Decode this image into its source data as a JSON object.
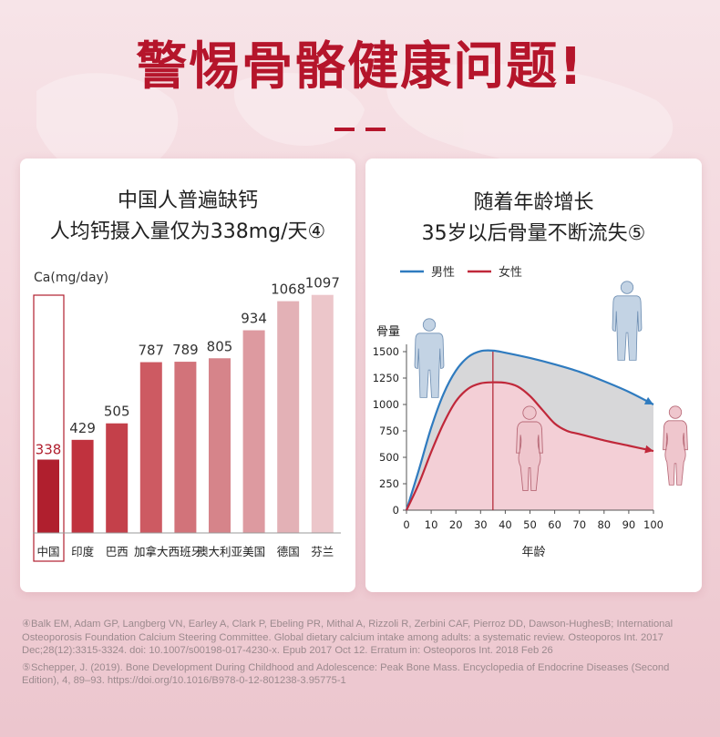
{
  "header": {
    "title": "警惕骨骼健康问题!"
  },
  "left_card": {
    "title_line1": "中国人普遍缺钙",
    "title_line2": "人均钙摄入量仅为338mg/天④"
  },
  "right_card": {
    "title_line1": "随着年龄增长",
    "title_line2": "35岁以后骨量不断流失⑤"
  },
  "references": {
    "ref4": "④Balk EM, Adam GP, Langberg VN, Earley A, Clark P, Ebeling PR, Mithal A, Rizzoli R, Zerbini CAF, Pierroz DD, Dawson-HughesB; International Osteoporosis Foundation Calcium Steering Committee. Global dietary calcium intake among adults: a systematic review. Osteoporos Int. 2017 Dec;28(12):3315-3324. doi: 10.1007/s00198-017-4230-x. Epub 2017 Oct 12. Erratum in: Osteoporos Int. 2018 Feb 26",
    "ref5": "⑤Schepper, J. (2019). Bone Development During Childhood and Adolescence: Peak Bone Mass. Encyclopedia of Endocrine Diseases (Second Edition), 4, 89–93. https://doi.org/10.1016/B978-0-12-801238-3.95775-1"
  },
  "chart_data": [
    {
      "type": "bar",
      "ylabel": "Ca(mg/day)",
      "categories": [
        "中国",
        "印度",
        "巴西",
        "加拿大",
        "西班牙",
        "澳大利亚",
        "美国",
        "德国",
        "芬兰"
      ],
      "values": [
        338,
        429,
        505,
        787,
        789,
        805,
        934,
        1068,
        1097
      ],
      "ylim": [
        0,
        1100
      ],
      "highlight_index": 0,
      "colors": [
        "#b01f2e",
        "#c0323e",
        "#c4404a",
        "#cd5a62",
        "#d2737a",
        "#d6848a",
        "#dd9aa0",
        "#e3b1b6",
        "#ecc6ca"
      ],
      "highlight_color": "#b01f2e"
    },
    {
      "type": "line",
      "ylabel": "骨量",
      "xlabel": "年龄",
      "xticks": [
        0,
        10,
        20,
        30,
        40,
        50,
        60,
        70,
        80,
        90,
        100
      ],
      "yticks": [
        0,
        250,
        500,
        750,
        1000,
        1250,
        1500
      ],
      "xlim": [
        0,
        100
      ],
      "ylim": [
        0,
        1500
      ],
      "peak_age": 35,
      "series": [
        {
          "name": "男性",
          "color": "#2f7bbf",
          "x": [
            0,
            5,
            10,
            15,
            20,
            25,
            30,
            35,
            40,
            50,
            60,
            70,
            80,
            90,
            100
          ],
          "y": [
            0,
            380,
            780,
            1100,
            1320,
            1450,
            1505,
            1510,
            1490,
            1440,
            1380,
            1310,
            1220,
            1120,
            1000
          ]
        },
        {
          "name": "女性",
          "color": "#c0283a",
          "x": [
            0,
            5,
            10,
            15,
            20,
            25,
            30,
            35,
            40,
            45,
            50,
            55,
            60,
            65,
            70,
            80,
            90,
            100
          ],
          "y": [
            0,
            250,
            550,
            820,
            1030,
            1150,
            1200,
            1210,
            1205,
            1170,
            1080,
            950,
            820,
            750,
            720,
            660,
            610,
            560
          ]
        }
      ]
    }
  ]
}
